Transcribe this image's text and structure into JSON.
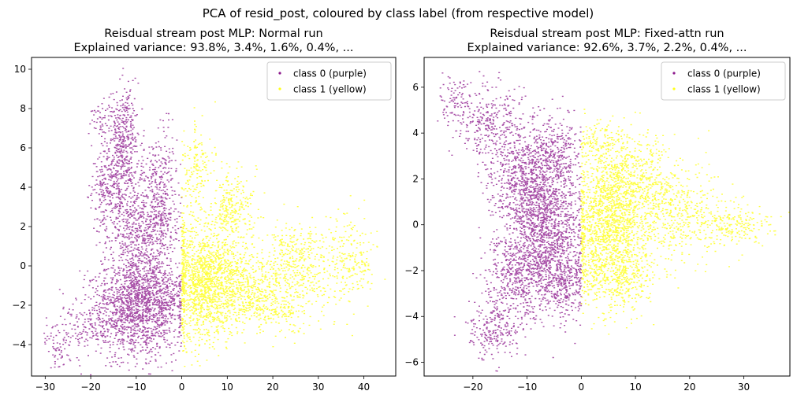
{
  "figure": {
    "suptitle": "PCA of resid_post, coloured by class label (from respective model)"
  },
  "chart_data": [
    {
      "type": "scatter",
      "title": "Reisdual stream post MLP: Normal run",
      "subtitle": "Explained variance: 93.8%, 3.4%, 1.6%, 0.4%,  ...",
      "xlabel": "",
      "ylabel": "",
      "xlim": [
        -33,
        47
      ],
      "ylim": [
        -5.6,
        10.6
      ],
      "xticks": [
        -30,
        -20,
        -10,
        0,
        10,
        20,
        30,
        40
      ],
      "yticks": [
        -4,
        -2,
        0,
        2,
        4,
        6,
        8,
        10
      ],
      "legend": "top-right",
      "series": [
        {
          "name": "class 0 (purple)",
          "color": "#800080",
          "regions": [
            {
              "cx": -10,
              "cy": -2.2,
              "sx": 5,
              "sy": 1.2,
              "n": 1300
            },
            {
              "cx": -8.5,
              "cy": 0.5,
              "sx": 2.5,
              "sy": 2.0,
              "n": 500
            },
            {
              "cx": -13,
              "cy": 3.5,
              "sx": 2.8,
              "sy": 1.8,
              "n": 450
            },
            {
              "cx": -13,
              "cy": 6.5,
              "sx": 1.6,
              "sy": 1.0,
              "n": 250
            },
            {
              "cx": -16,
              "cy": 4.5,
              "sx": 2.0,
              "sy": 1.0,
              "n": 150
            },
            {
              "cx": -12,
              "cy": 8.5,
              "sx": 1.0,
              "sy": 0.8,
              "n": 40
            },
            {
              "cx": -4,
              "cy": 2.5,
              "sx": 2.0,
              "sy": 1.2,
              "n": 250
            },
            {
              "cx": -5,
              "cy": 5.0,
              "sx": 2.0,
              "sy": 1.2,
              "n": 120
            },
            {
              "cx": -22,
              "cy": -3.2,
              "sx": 4,
              "sy": 0.6,
              "n": 150
            },
            {
              "cx": -27,
              "cy": -4.3,
              "sx": 1.5,
              "sy": 0.4,
              "n": 40
            },
            {
              "cx": -3,
              "cy": -1.5,
              "sx": 2.0,
              "sy": 1.0,
              "n": 200
            },
            {
              "cx": -18,
              "cy": 7.5,
              "sx": 1.2,
              "sy": 0.5,
              "n": 40
            }
          ]
        },
        {
          "name": "class 1 (yellow)",
          "color": "#ffff00",
          "regions": [
            {
              "cx": 5,
              "cy": -0.8,
              "sx": 4,
              "sy": 1.6,
              "n": 1400
            },
            {
              "cx": 14,
              "cy": -1.0,
              "sx": 5,
              "sy": 1.0,
              "n": 500
            },
            {
              "cx": 11,
              "cy": 3.0,
              "sx": 2.5,
              "sy": 1.0,
              "n": 250
            },
            {
              "cx": 3,
              "cy": 5.0,
              "sx": 1.8,
              "sy": 1.2,
              "n": 150
            },
            {
              "cx": 26,
              "cy": 0.2,
              "sx": 4,
              "sy": 1.0,
              "n": 400
            },
            {
              "cx": 37,
              "cy": 0.3,
              "sx": 3,
              "sy": 1.2,
              "n": 200
            },
            {
              "cx": 20,
              "cy": -2.2,
              "sx": 5,
              "sy": 0.6,
              "n": 200
            }
          ]
        }
      ]
    },
    {
      "type": "scatter",
      "title": "Reisdual stream post MLP: Fixed-attn run",
      "subtitle": "Explained variance: 92.6%, 3.7%, 2.2%, 0.4%,  ...",
      "xlabel": "",
      "ylabel": "",
      "xlim": [
        -29,
        38.5
      ],
      "ylim": [
        -6.6,
        7.3
      ],
      "xticks": [
        -20,
        -10,
        0,
        10,
        20,
        30
      ],
      "yticks": [
        -6,
        -4,
        -2,
        0,
        2,
        4,
        6
      ],
      "legend": "top-right",
      "series": [
        {
          "name": "class 0 (purple)",
          "color": "#800080",
          "regions": [
            {
              "cx": -6,
              "cy": 0.0,
              "sx": 3,
              "sy": 1.5,
              "n": 1100
            },
            {
              "cx": -11,
              "cy": 2.0,
              "sx": 3,
              "sy": 1.2,
              "n": 700
            },
            {
              "cx": -17,
              "cy": 4.5,
              "sx": 3,
              "sy": 0.8,
              "n": 300
            },
            {
              "cx": -23,
              "cy": 5.6,
              "sx": 1.5,
              "sy": 0.5,
              "n": 80
            },
            {
              "cx": -11,
              "cy": -2.0,
              "sx": 3,
              "sy": 1.0,
              "n": 600
            },
            {
              "cx": -16,
              "cy": -4.5,
              "sx": 2.5,
              "sy": 0.7,
              "n": 250
            },
            {
              "cx": -5,
              "cy": 3.2,
              "sx": 2.5,
              "sy": 0.8,
              "n": 300
            },
            {
              "cx": -3,
              "cy": -2.5,
              "sx": 2.0,
              "sy": 0.8,
              "n": 300
            }
          ]
        },
        {
          "name": "class 1 (yellow)",
          "color": "#ffff00",
          "regions": [
            {
              "cx": 5,
              "cy": 0.0,
              "sx": 3.5,
              "sy": 1.4,
              "n": 1300
            },
            {
              "cx": 10,
              "cy": 2.0,
              "sx": 4,
              "sy": 1.0,
              "n": 500
            },
            {
              "cx": 17,
              "cy": 0.5,
              "sx": 5,
              "sy": 1.0,
              "n": 450
            },
            {
              "cx": 28,
              "cy": 0.0,
              "sx": 4,
              "sy": 0.5,
              "n": 200
            },
            {
              "cx": 7,
              "cy": -2.3,
              "sx": 3.5,
              "sy": 0.9,
              "n": 350
            },
            {
              "cx": 4,
              "cy": 3.5,
              "sx": 2.5,
              "sy": 0.6,
              "n": 150
            }
          ]
        }
      ]
    }
  ]
}
